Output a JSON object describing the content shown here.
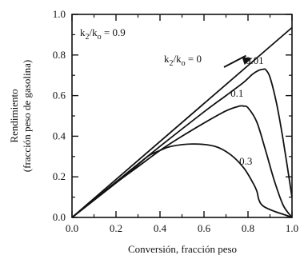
{
  "chart_data": {
    "type": "line",
    "xlabel": "Conversión, fracción peso",
    "ylabel_line1": "Rendimiento",
    "ylabel_line2": "(fracción peso de gasolina)",
    "xlim": [
      0.0,
      1.0
    ],
    "ylim": [
      0.0,
      1.0
    ],
    "xticks": [
      "0.0",
      "0.2",
      "0.4",
      "0.6",
      "0.8",
      "1.0"
    ],
    "yticks": [
      "0.0",
      "0.2",
      "0.4",
      "0.6",
      "0.8",
      "1.0"
    ],
    "grid": false,
    "annotations": {
      "top_left": {
        "pre": "k",
        "sub1": "2",
        "mid": "/k",
        "sub2": "o",
        "post": " = 0.9"
      },
      "arrow_label": {
        "pre": "k",
        "sub1": "2",
        "mid": "/k",
        "sub2": "o",
        "post": " = 0"
      }
    },
    "series": [
      {
        "label": "0",
        "x": [
          0.0,
          1.0
        ],
        "y": [
          0.0,
          0.935
        ]
      },
      {
        "label": "0.01",
        "x": [
          0.0,
          0.2,
          0.4,
          0.6,
          0.7,
          0.78,
          0.82,
          0.85,
          0.87,
          0.88,
          0.9,
          0.93,
          0.96,
          1.0
        ],
        "y": [
          0.0,
          0.175,
          0.35,
          0.52,
          0.6,
          0.665,
          0.705,
          0.725,
          0.73,
          0.728,
          0.69,
          0.56,
          0.38,
          0.1
        ]
      },
      {
        "label": "0.1",
        "x": [
          0.0,
          0.2,
          0.3,
          0.4,
          0.5,
          0.6,
          0.7,
          0.76,
          0.78,
          0.8,
          0.84,
          0.88,
          0.92,
          0.96,
          1.0
        ],
        "y": [
          0.0,
          0.17,
          0.25,
          0.33,
          0.4,
          0.465,
          0.525,
          0.548,
          0.548,
          0.54,
          0.47,
          0.33,
          0.18,
          0.06,
          0.0
        ]
      },
      {
        "label": "0.3",
        "x": [
          0.0,
          0.2,
          0.3,
          0.35,
          0.4,
          0.45,
          0.55,
          0.65,
          0.72,
          0.78,
          0.82,
          0.84,
          0.85,
          0.87,
          0.92,
          0.97,
          1.0
        ],
        "y": [
          0.0,
          0.17,
          0.26,
          0.305,
          0.33,
          0.35,
          0.362,
          0.35,
          0.31,
          0.245,
          0.175,
          0.13,
          0.085,
          0.055,
          0.03,
          0.012,
          0.0
        ]
      }
    ]
  }
}
